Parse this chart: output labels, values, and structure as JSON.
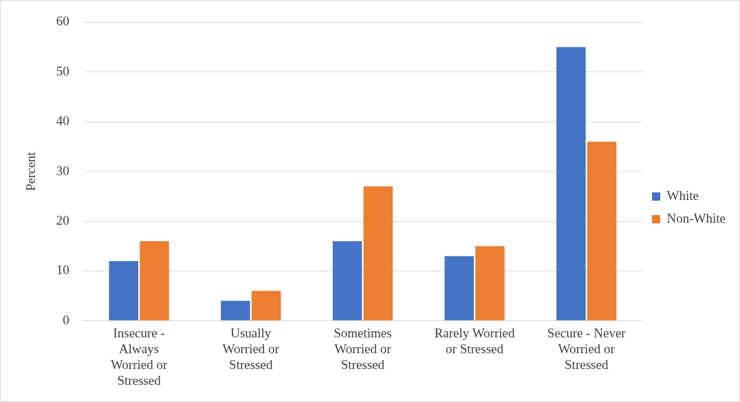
{
  "chart_data": {
    "type": "bar",
    "ylabel": "Percent",
    "categories": [
      "Insecure - Always Worried or Stressed",
      "Usually Worried or Stressed",
      "Sometimes Worried or Stressed",
      "Rarely Worried or Stressed",
      "Secure - Never Worried or Stressed"
    ],
    "series": [
      {
        "name": "White",
        "color": "#4472c4",
        "values": [
          12,
          4,
          16,
          13,
          55
        ]
      },
      {
        "name": "Non-White",
        "color": "#ed7d31",
        "values": [
          16,
          6,
          27,
          15,
          36
        ]
      }
    ],
    "ylim": [
      0,
      60
    ],
    "yticks": [
      0,
      10,
      20,
      30,
      40,
      50,
      60
    ],
    "grid": "y",
    "legend": "right"
  }
}
